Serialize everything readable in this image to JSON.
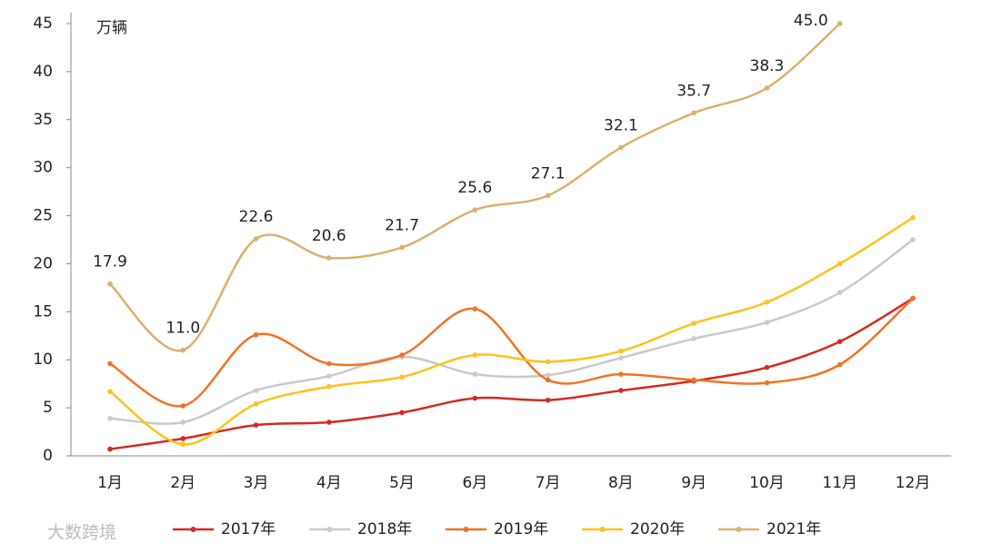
{
  "chart_data": {
    "type": "line",
    "y_label": "万辆",
    "categories": [
      "1月",
      "2月",
      "3月",
      "4月",
      "5月",
      "6月",
      "7月",
      "8月",
      "9月",
      "10月",
      "11月",
      "12月"
    ],
    "series": [
      {
        "name": "2017年",
        "color": "#d42a22",
        "values": [
          0.7,
          1.8,
          3.2,
          3.5,
          4.5,
          6.0,
          5.8,
          6.8,
          7.8,
          9.2,
          11.9,
          16.4
        ]
      },
      {
        "name": "2018年",
        "color": "#c9c9c9",
        "values": [
          3.9,
          3.5,
          6.8,
          8.3,
          10.3,
          8.5,
          8.4,
          10.2,
          12.2,
          13.9,
          17.0,
          22.5
        ]
      },
      {
        "name": "2019年",
        "color": "#f07424",
        "values": [
          9.6,
          5.2,
          12.6,
          9.6,
          10.5,
          15.3,
          7.9,
          8.5,
          7.9,
          7.6,
          9.5,
          16.4
        ]
      },
      {
        "name": "2020年",
        "color": "#ffc21a",
        "values": [
          6.7,
          1.2,
          5.4,
          7.2,
          8.2,
          10.5,
          9.8,
          10.9,
          13.8,
          16.0,
          20.0,
          24.8
        ]
      },
      {
        "name": "2021年",
        "color": "#dcb06e",
        "values": [
          17.9,
          11.0,
          22.6,
          20.6,
          21.7,
          25.6,
          27.1,
          32.1,
          35.7,
          38.3,
          45.0,
          null
        ],
        "value_labels": [
          "17.9",
          "11.0",
          "22.6",
          "20.6",
          "21.7",
          "25.6",
          "27.1",
          "32.1",
          "35.7",
          "38.3",
          "45.0",
          null
        ]
      }
    ],
    "ylim": [
      0,
      45
    ],
    "yticks": [
      0,
      5,
      10,
      15,
      20,
      25,
      30,
      35,
      40,
      45
    ],
    "grid": false,
    "legend": "bottom"
  },
  "watermark": "大数跨境"
}
